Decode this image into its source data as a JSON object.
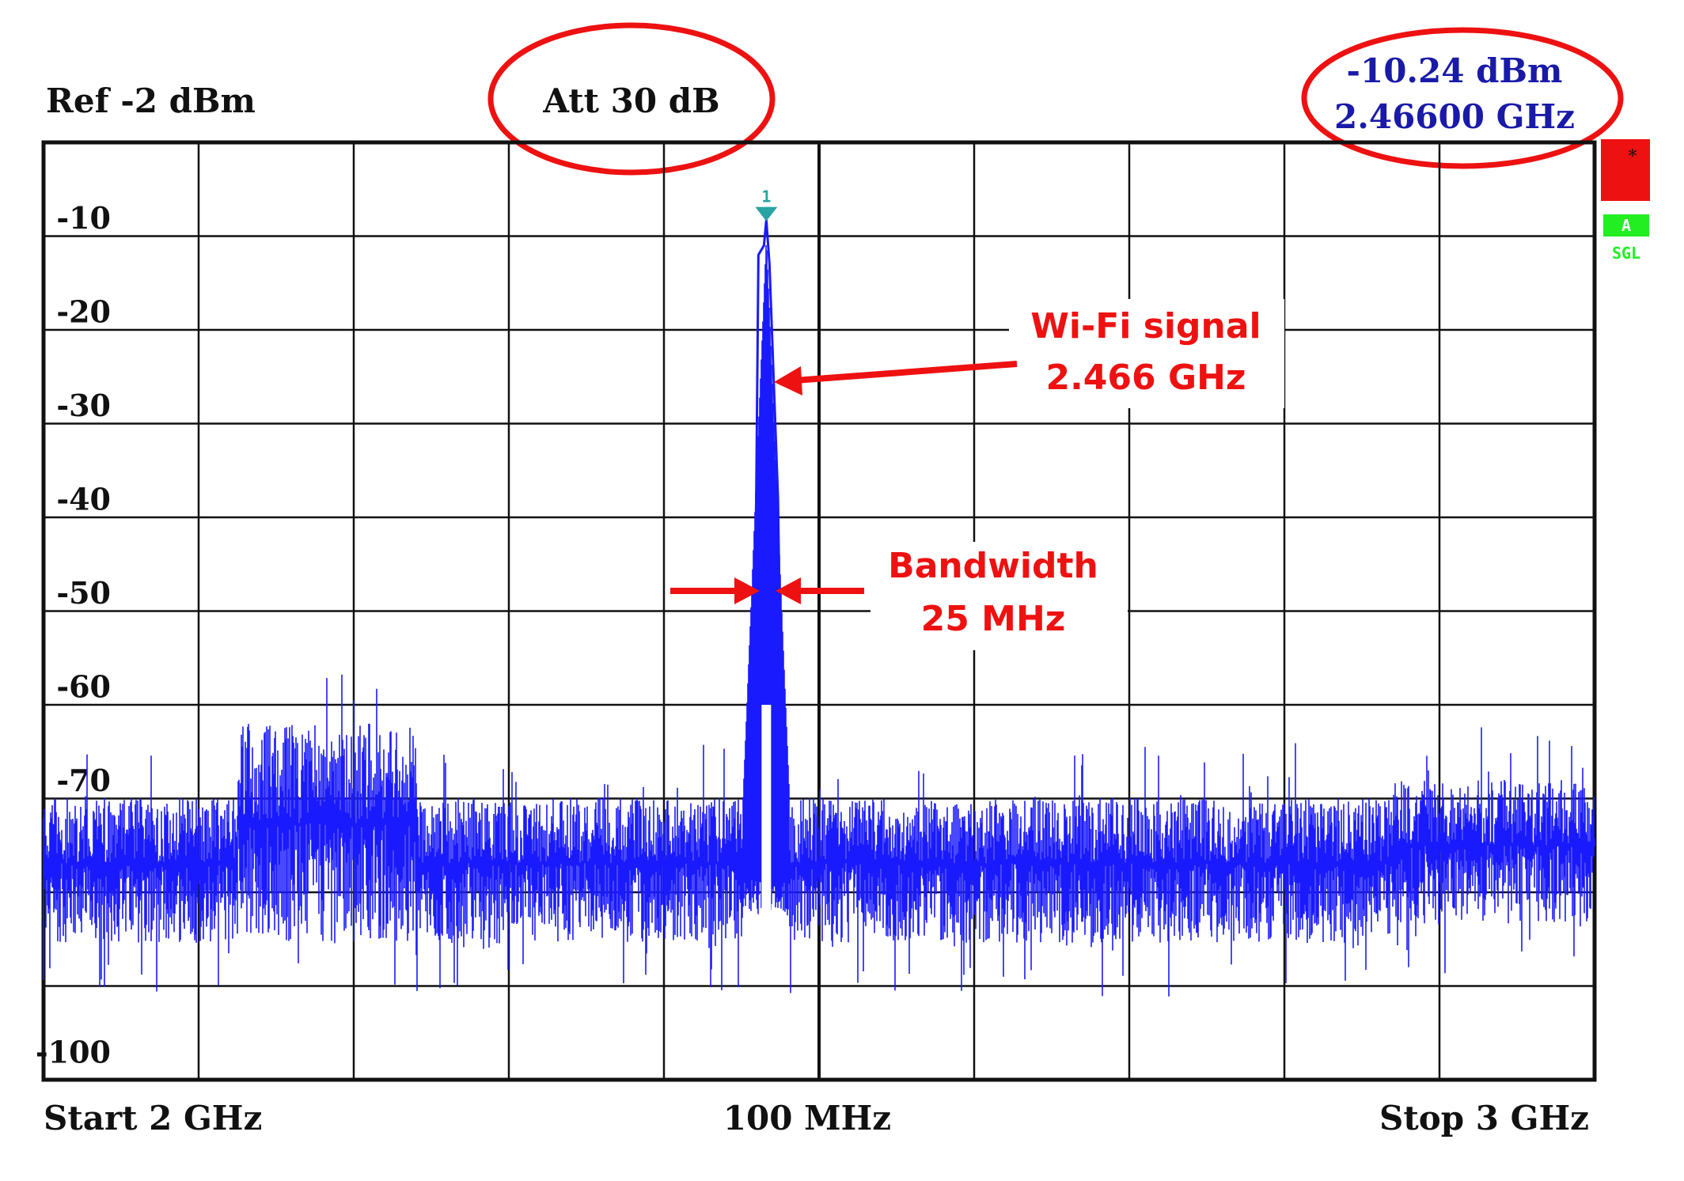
{
  "header": {
    "ref_level": "Ref -2 dBm",
    "attenuation": "Att 30 dB",
    "marker_level": "-10.24 dBm",
    "marker_freq": "2.46600 GHz"
  },
  "footer": {
    "start": "Start 2 GHz",
    "span": "100 MHz",
    "stop": "Stop 3 GHz"
  },
  "status_badges": {
    "trace_label": "A",
    "sweep_label": "SGL"
  },
  "marker_label": "1",
  "annotations": {
    "signal_line1": "Wi-Fi signal",
    "signal_line2": "2.466 GHz",
    "bandwidth_line1": "Bandwidth",
    "bandwidth_line2": "25 MHz"
  },
  "colors": {
    "trace": "#1a1aff",
    "annotation": "#ee1111",
    "readout": "#1a1aa8",
    "marker": "#2aa3a3",
    "badge_red": "#ee1111",
    "badge_green": "#22ee22"
  },
  "chart_data": {
    "type": "line",
    "title": "",
    "xlabel": "",
    "ylabel": "",
    "xlim": [
      2.0,
      3.0
    ],
    "x_unit": "GHz",
    "ylim": [
      -100,
      -2
    ],
    "y_ticks": [
      -10,
      -20,
      -30,
      -40,
      -50,
      -60,
      -70,
      -100
    ],
    "y_tick_labels": [
      "-10",
      "-20",
      "-30",
      "-40",
      "-50",
      "-60",
      "-70",
      "-100"
    ],
    "grid": true,
    "series": [
      {
        "noise_floor_dBm": [
          -88,
          -72
        ],
        "elevated_region": {
          "x": [
            2.125,
            2.24
          ],
          "envelope_dBm": [
            -88,
            -58
          ]
        },
        "high_edge_region": {
          "x": [
            2.87,
            3.0
          ],
          "envelope_dBm": [
            -86,
            -66
          ]
        },
        "peak": {
          "x": 2.466,
          "y": -10.24
        },
        "peak_bandwidth_MHz": 25,
        "bandwidth_level_dBm": -50
      }
    ],
    "marker": {
      "id": "1",
      "x": 2.466,
      "y": -10.24
    }
  }
}
